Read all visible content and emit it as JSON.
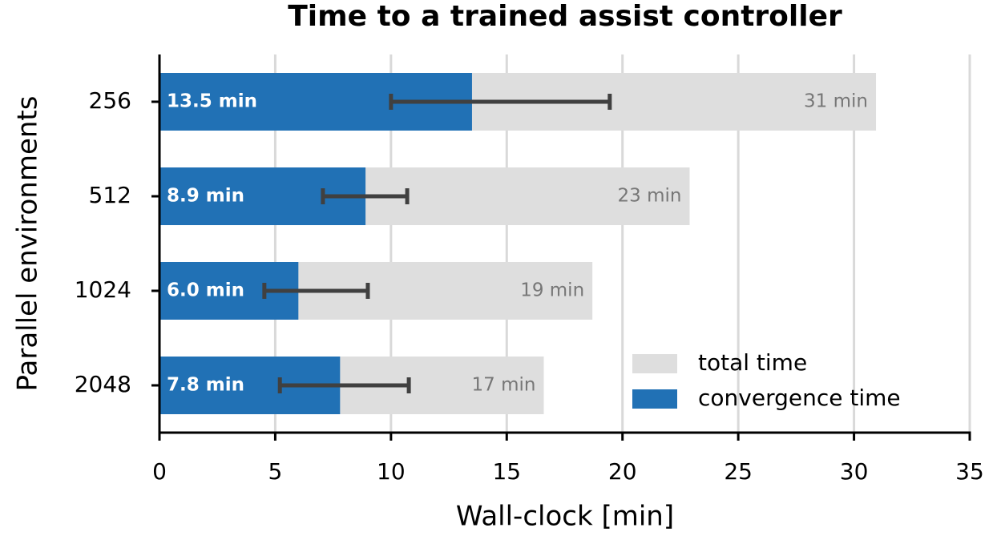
{
  "chart_data": {
    "type": "bar",
    "orientation": "horizontal",
    "title": "Time to a trained assist controller",
    "xlabel": "Wall-clock  [min]",
    "ylabel": "Parallel environments",
    "categories": [
      "256",
      "512",
      "1024",
      "2048"
    ],
    "series": [
      {
        "name": "total time",
        "color": "#dedede",
        "values": [
          30.95,
          22.9,
          18.7,
          16.6
        ],
        "value_labels": [
          "31 min",
          "23 min",
          "19 min",
          "17 min"
        ]
      },
      {
        "name": "convergence time",
        "color": "#2171b5",
        "values": [
          13.5,
          8.9,
          6.0,
          7.8
        ],
        "value_labels": [
          "13.5 min",
          "8.9 min",
          "6.0 min",
          "7.8 min"
        ],
        "err_minus": [
          3.5,
          1.84,
          1.47,
          2.6
        ],
        "err_plus": [
          5.95,
          1.8,
          3.0,
          2.97
        ],
        "err_color": "#404040"
      }
    ],
    "xlim": [
      0,
      35
    ],
    "xticks": [
      0,
      5,
      10,
      15,
      20,
      25,
      30,
      35
    ],
    "grid": true,
    "legend": "lower right"
  }
}
